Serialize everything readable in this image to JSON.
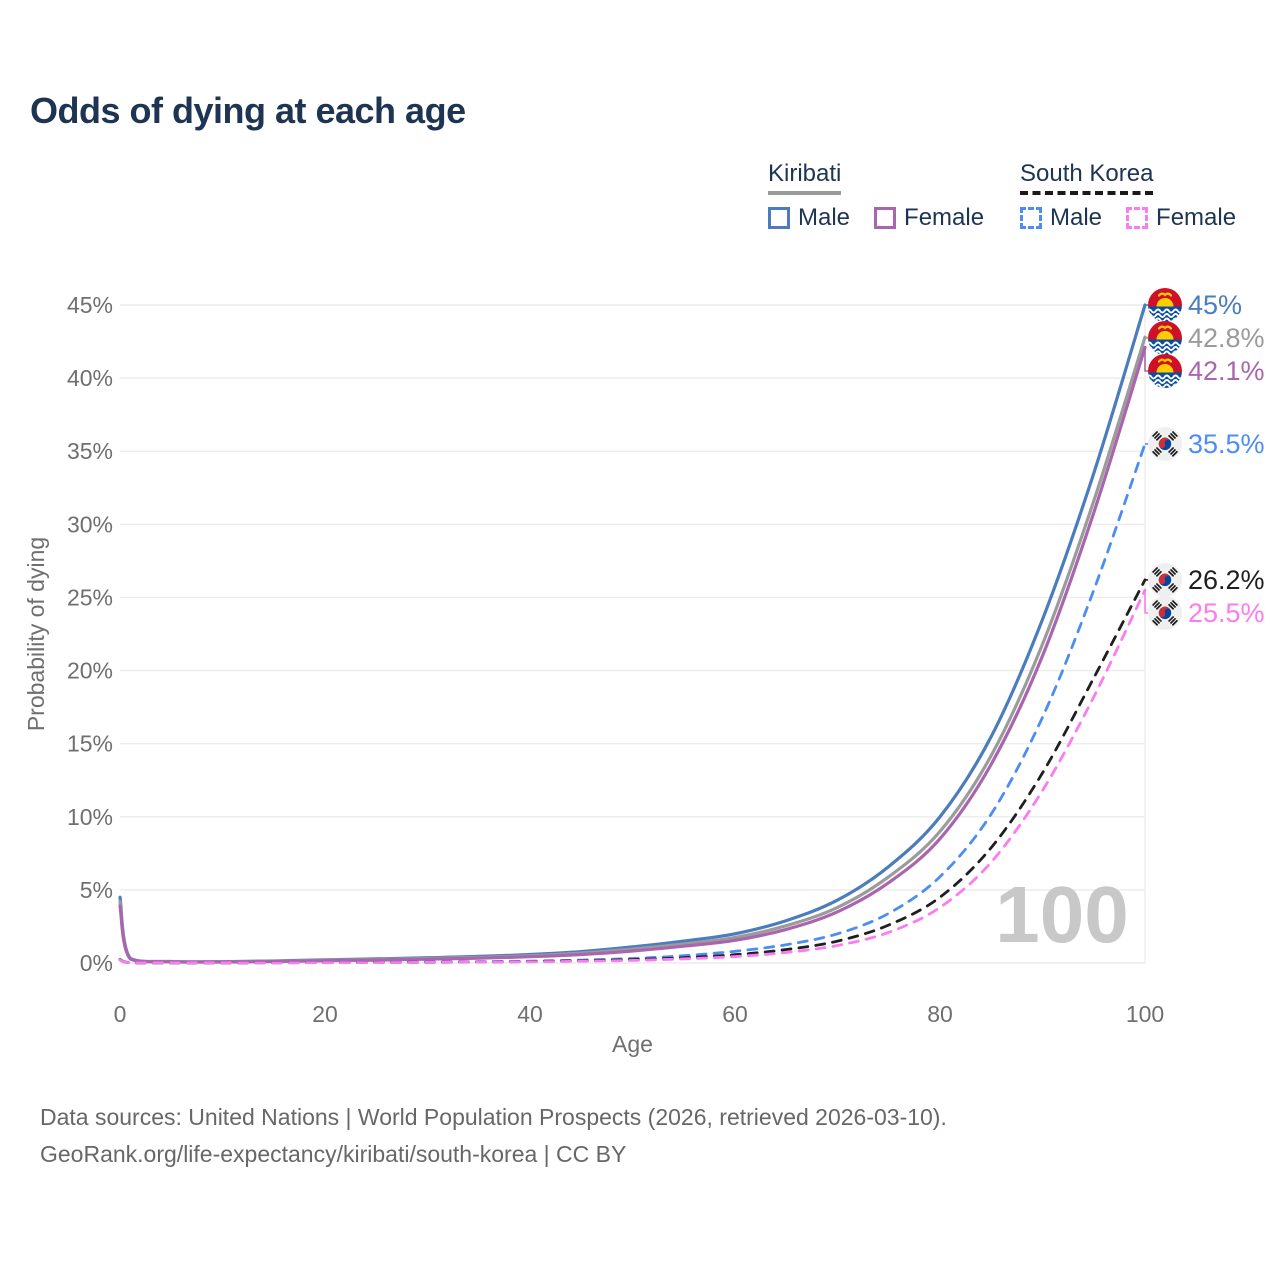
{
  "title": "Odds of dying at each age",
  "watermark": "100",
  "legend": {
    "groups": [
      {
        "label": "Kiribati",
        "line_style": "solid",
        "underline_color": "#9a9a9a",
        "items": [
          {
            "label": "Male",
            "color": "#4b7cbd"
          },
          {
            "label": "Female",
            "color": "#a965ad"
          }
        ]
      },
      {
        "label": "South Korea",
        "line_style": "dashed",
        "underline_color": "#1a1a1a",
        "items": [
          {
            "label": "Male",
            "color": "#4d8df2"
          },
          {
            "label": "Female",
            "color": "#fb7cf0"
          }
        ]
      }
    ]
  },
  "footer": {
    "line1": "Data sources: United Nations | World Population Prospects (2026, retrieved 2026-03-10).",
    "line2": "GeoRank.org/life-expectancy/kiribati/south-korea | CC BY"
  },
  "chart_data": {
    "type": "line",
    "title": "Odds of dying at each age",
    "xlabel": "Age",
    "ylabel": "Probability of dying",
    "xlim": [
      0,
      100
    ],
    "ylim": [
      0,
      45
    ],
    "x_ticks": [
      0,
      20,
      40,
      60,
      80,
      100
    ],
    "y_ticks": [
      0,
      5,
      10,
      15,
      20,
      25,
      30,
      35,
      40,
      45
    ],
    "y_tick_suffix": "%",
    "grid": "horizontal",
    "legend_position": "top-right",
    "watermark": "100",
    "x": [
      0,
      1,
      5,
      10,
      15,
      20,
      25,
      30,
      35,
      40,
      45,
      50,
      55,
      60,
      65,
      70,
      75,
      80,
      85,
      90,
      95,
      100
    ],
    "series": [
      {
        "name": "Kiribati Male",
        "country": "Kiribati",
        "sex": "Male",
        "color": "#4b7cbd",
        "dash": "solid",
        "flag": "kiribati",
        "end_label": "45%",
        "end_value": 45.0,
        "values": [
          4.5,
          0.32,
          0.1,
          0.09,
          0.14,
          0.22,
          0.28,
          0.36,
          0.45,
          0.58,
          0.78,
          1.1,
          1.5,
          2.0,
          2.9,
          4.3,
          6.6,
          10.0,
          15.5,
          23.5,
          33.5,
          45.0
        ]
      },
      {
        "name": "Kiribati All",
        "country": "Kiribati",
        "sex": "All",
        "color": "#9b9b9b",
        "dash": "solid",
        "flag": "kiribati",
        "end_label": "42.8%",
        "end_value": 42.8,
        "values": [
          4.2,
          0.3,
          0.09,
          0.08,
          0.12,
          0.19,
          0.24,
          0.31,
          0.39,
          0.5,
          0.68,
          0.95,
          1.3,
          1.75,
          2.55,
          3.8,
          5.9,
          9.0,
          14.2,
          21.8,
          31.6,
          42.8
        ]
      },
      {
        "name": "Kiribati Female",
        "country": "Kiribati",
        "sex": "Female",
        "color": "#a965ad",
        "dash": "solid",
        "flag": "kiribati",
        "end_label": "42.1%",
        "end_value": 42.1,
        "values": [
          3.9,
          0.28,
          0.08,
          0.07,
          0.1,
          0.16,
          0.2,
          0.26,
          0.33,
          0.43,
          0.58,
          0.82,
          1.15,
          1.55,
          2.3,
          3.5,
          5.5,
          8.5,
          13.6,
          21.0,
          30.8,
          42.1
        ]
      },
      {
        "name": "South Korea Male",
        "country": "South Korea",
        "sex": "Male",
        "color": "#4d8df2",
        "dash": "dashed",
        "flag": "south-korea",
        "end_label": "35.5%",
        "end_value": 35.5,
        "values": [
          0.25,
          0.02,
          0.01,
          0.01,
          0.02,
          0.04,
          0.05,
          0.07,
          0.09,
          0.13,
          0.2,
          0.31,
          0.5,
          0.8,
          1.25,
          2.0,
          3.4,
          5.9,
          10.2,
          16.8,
          25.5,
          35.5
        ]
      },
      {
        "name": "South Korea All",
        "country": "South Korea",
        "sex": "All",
        "color": "#1f1f1f",
        "dash": "dashed",
        "flag": "south-korea",
        "end_label": "26.2%",
        "end_value": 26.2,
        "values": [
          0.22,
          0.02,
          0.01,
          0.01,
          0.02,
          0.03,
          0.04,
          0.05,
          0.07,
          0.1,
          0.15,
          0.23,
          0.36,
          0.57,
          0.92,
          1.5,
          2.6,
          4.5,
          7.9,
          13.0,
          19.5,
          26.2
        ]
      },
      {
        "name": "South Korea Female",
        "country": "South Korea",
        "sex": "Female",
        "color": "#fb7cf0",
        "dash": "dashed",
        "flag": "south-korea",
        "end_label": "25.5%",
        "end_value": 25.5,
        "values": [
          0.2,
          0.02,
          0.01,
          0.01,
          0.01,
          0.02,
          0.03,
          0.04,
          0.06,
          0.08,
          0.12,
          0.18,
          0.28,
          0.44,
          0.72,
          1.2,
          2.1,
          3.8,
          6.9,
          11.8,
          18.2,
          25.5
        ]
      }
    ]
  }
}
